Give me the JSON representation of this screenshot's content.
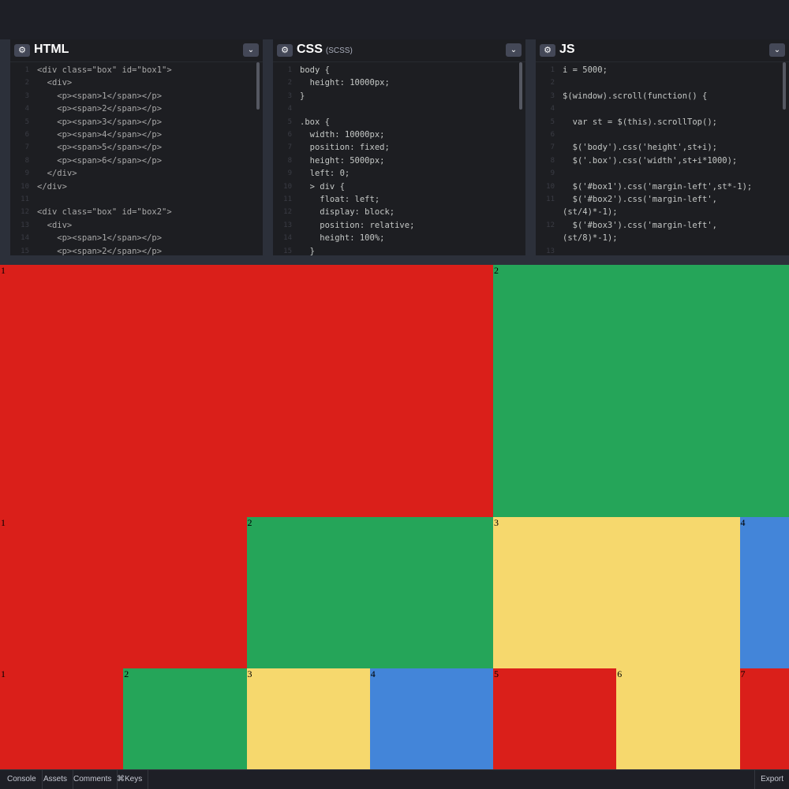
{
  "editors": [
    {
      "title": "HTML",
      "subtitle": "",
      "lines": [
        {
          "n": "1",
          "t": "<div class=\"box\" id=\"box1\">"
        },
        {
          "n": "2",
          "t": "  <div>"
        },
        {
          "n": "3",
          "t": "    <p><span>1</span></p>"
        },
        {
          "n": "4",
          "t": "    <p><span>2</span></p>"
        },
        {
          "n": "5",
          "t": "    <p><span>3</span></p>"
        },
        {
          "n": "6",
          "t": "    <p><span>4</span></p>"
        },
        {
          "n": "7",
          "t": "    <p><span>5</span></p>"
        },
        {
          "n": "8",
          "t": "    <p><span>6</span></p>"
        },
        {
          "n": "9",
          "t": "  </div>"
        },
        {
          "n": "10",
          "t": "</div>"
        },
        {
          "n": "11",
          "t": ""
        },
        {
          "n": "12",
          "t": "<div class=\"box\" id=\"box2\">"
        },
        {
          "n": "13",
          "t": "  <div>"
        },
        {
          "n": "14",
          "t": "    <p><span>1</span></p>"
        },
        {
          "n": "15",
          "t": "    <p><span>2</span></p>"
        }
      ]
    },
    {
      "title": "CSS",
      "subtitle": "(SCSS)",
      "lines": [
        {
          "n": "1",
          "t": "body {"
        },
        {
          "n": "2",
          "t": "  height: 10000px;"
        },
        {
          "n": "3",
          "t": "}"
        },
        {
          "n": "4",
          "t": ""
        },
        {
          "n": "5",
          "t": ".box {"
        },
        {
          "n": "6",
          "t": "  width: 10000px;"
        },
        {
          "n": "7",
          "t": "  position: fixed;"
        },
        {
          "n": "8",
          "t": "  height: 5000px;"
        },
        {
          "n": "9",
          "t": "  left: 0;"
        },
        {
          "n": "10",
          "t": "  > div {"
        },
        {
          "n": "11",
          "t": "    float: left;"
        },
        {
          "n": "12",
          "t": "    display: block;"
        },
        {
          "n": "13",
          "t": "    position: relative;"
        },
        {
          "n": "14",
          "t": "    height: 100%;"
        },
        {
          "n": "15",
          "t": "  }"
        }
      ]
    },
    {
      "title": "JS",
      "subtitle": "",
      "lines": [
        {
          "n": "1",
          "t": "i = 5000;"
        },
        {
          "n": "2",
          "t": ""
        },
        {
          "n": "3",
          "t": "$(window).scroll(function() {"
        },
        {
          "n": "4",
          "t": ""
        },
        {
          "n": "5",
          "t": "  var st = $(this).scrollTop();"
        },
        {
          "n": "6",
          "t": ""
        },
        {
          "n": "7",
          "t": "  $('body').css('height',st+i);"
        },
        {
          "n": "8",
          "t": "  $('.box').css('width',st+i*1000);"
        },
        {
          "n": "9",
          "t": ""
        },
        {
          "n": "10",
          "t": "  $('#box1').css('margin-left',st*-1);"
        },
        {
          "n": "11",
          "t": "  $('#box2').css('margin-left',"
        },
        {
          "n": "",
          "t": "(st/4)*-1);"
        },
        {
          "n": "12",
          "t": "  $('#box3').css('margin-left',"
        },
        {
          "n": "",
          "t": "(st/8)*-1);"
        },
        {
          "n": "13",
          "t": ""
        }
      ]
    }
  ],
  "preview": {
    "colors": {
      "red": "#da1f1a",
      "green": "#25a559",
      "yellow": "#f6d86d",
      "blue": "#4385d9"
    },
    "rows": [
      {
        "cells": [
          {
            "label": "1",
            "color": "red"
          },
          {
            "label": "2",
            "color": "green"
          }
        ]
      },
      {
        "cells": [
          {
            "label": "1",
            "color": "red"
          },
          {
            "label": "2",
            "color": "green"
          },
          {
            "label": "3",
            "color": "yellow"
          },
          {
            "label": "4",
            "color": "blue"
          }
        ]
      },
      {
        "cells": [
          {
            "label": "1",
            "color": "red"
          },
          {
            "label": "2",
            "color": "green"
          },
          {
            "label": "3",
            "color": "yellow"
          },
          {
            "label": "4",
            "color": "blue"
          },
          {
            "label": "5",
            "color": "red"
          },
          {
            "label": "6",
            "color": "yellow"
          },
          {
            "label": "7",
            "color": "red"
          }
        ]
      }
    ]
  },
  "bottombar": {
    "console": "Console",
    "assets": "Assets",
    "comments": "Comments",
    "keys": "⌘Keys",
    "export": "Export"
  }
}
